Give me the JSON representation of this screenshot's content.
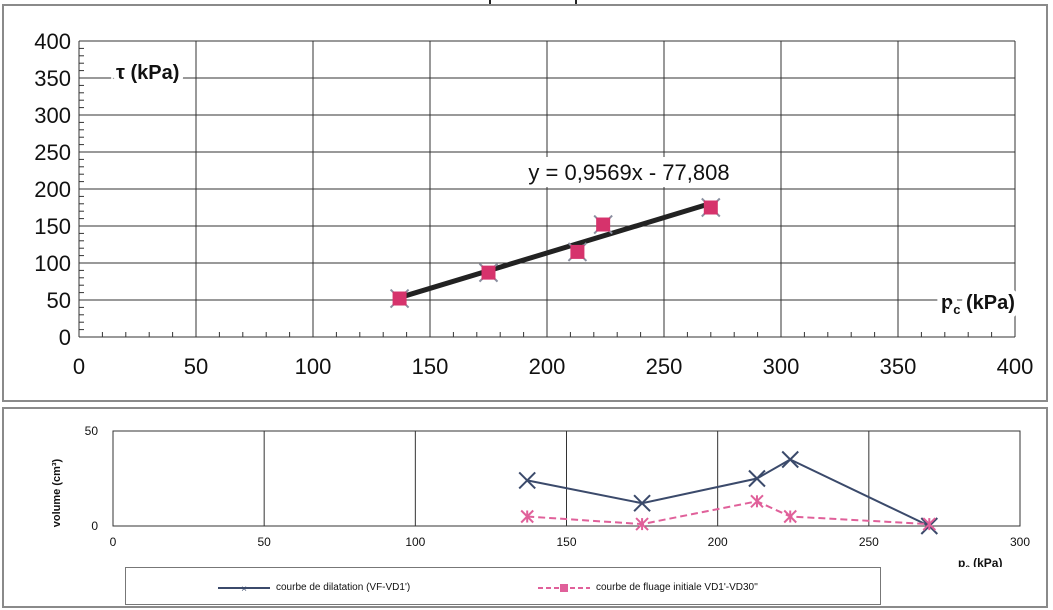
{
  "chart_data": [
    {
      "type": "scatter",
      "title": "",
      "xlabel": "",
      "ylabel": "",
      "ylabel_text": "τ (kPa)",
      "xlabel_text": "p",
      "xlabel_sub": "c",
      "xlabel_unit": " (kPa)",
      "xlim": [
        0,
        400
      ],
      "ylim": [
        0,
        400
      ],
      "x_ticks": [
        "0",
        "50",
        "100",
        "150",
        "200",
        "250",
        "300",
        "350",
        "400"
      ],
      "y_ticks": [
        "0",
        "50",
        "100",
        "150",
        "200",
        "250",
        "300",
        "350",
        "400"
      ],
      "grid": true,
      "series": [
        {
          "x": [
            137,
            175,
            213,
            224,
            270
          ],
          "y": [
            52,
            87,
            115,
            152,
            175
          ],
          "color": "#d6336c"
        }
      ],
      "trendline": {
        "slope": 0.9569,
        "intercept": -77.808,
        "x_range": [
          137,
          270
        ],
        "equation": "y = 0,9569x - 77,808",
        "color": "#222222"
      }
    },
    {
      "type": "line",
      "xlabel_text": "p",
      "xlabel_sub": "c",
      "xlabel_unit": " (kPa)",
      "ylabel": "volume (cm³)",
      "xlim": [
        0,
        300
      ],
      "ylim": [
        0,
        50
      ],
      "x_ticks": [
        "0",
        "50",
        "100",
        "150",
        "200",
        "250",
        "300"
      ],
      "y_ticks": [
        "0",
        "50"
      ],
      "grid": true,
      "legend": "bottom",
      "series": [
        {
          "name": "courbe de dilatation (VF-VD1')",
          "x": [
            137,
            175,
            213,
            224,
            270
          ],
          "y": [
            24,
            12,
            25,
            35,
            0
          ],
          "color": "#3b4a6b",
          "dash": false
        },
        {
          "name": "courbe de fluage initiale VD1'-VD30''",
          "x": [
            137,
            175,
            213,
            224,
            270
          ],
          "y": [
            5,
            1,
            13,
            5,
            1
          ],
          "color": "#e0609a",
          "dash": true
        }
      ]
    }
  ]
}
